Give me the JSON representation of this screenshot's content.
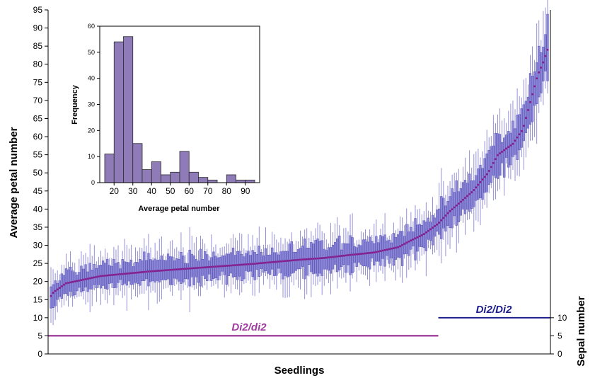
{
  "chart_data": [
    {
      "type": "box",
      "xlabel": "Seedlings",
      "ylabel": "Average petal number",
      "ylim": [
        0,
        95
      ],
      "yticks": [
        0,
        5,
        10,
        15,
        20,
        25,
        30,
        35,
        40,
        45,
        50,
        55,
        60,
        65,
        70,
        75,
        80,
        85,
        90,
        95
      ],
      "secondary_axis": {
        "label": "Sepal number",
        "ylim": [
          0,
          95
        ],
        "ticks": [
          0,
          5,
          10
        ]
      },
      "series": [
        {
          "id": "seedling_means",
          "n_points": 230,
          "mean_profile": {
            "x_fraction": [
              0,
              0.005,
              0.03,
              0.1,
              0.2,
              0.3,
              0.4,
              0.5,
              0.55,
              0.6,
              0.65,
              0.7,
              0.72,
              0.75,
              0.78,
              0.8,
              0.85,
              0.88,
              0.9,
              0.93,
              0.95,
              0.96,
              0.97,
              0.98,
              0.99,
              1.0
            ],
            "y": [
              16,
              17,
              19.5,
              21.5,
              22.8,
              23.8,
              24.8,
              26,
              26.5,
              27.3,
              28,
              29.5,
              31,
              33,
              36,
              39,
              45,
              50,
              55,
              58,
              62,
              67,
              72,
              77,
              80,
              84
            ]
          },
          "box_whisker_spread": "per-seedling range shown as box and whisker"
        }
      ],
      "genotype_levels": [
        {
          "label": "Di2/di2",
          "sepal_number": 5,
          "x_fraction_start": 0.0,
          "x_fraction_end": 0.78,
          "color": "#8b1a8b",
          "label_color": "#a03aa0"
        },
        {
          "label": "Di2/Di2",
          "sepal_number": 10,
          "x_fraction_start": 0.78,
          "x_fraction_end": 1.0,
          "color": "#1c1c8c",
          "label_color": "#1c1c8c"
        }
      ],
      "colors": {
        "box": "#8a85d6",
        "box_stroke": "#3e3aa0",
        "mean": "#8b1a8b"
      }
    },
    {
      "type": "bar",
      "title": "",
      "xlabel": "Average petal number",
      "ylabel": "Frequency",
      "ylim": [
        0,
        60
      ],
      "yticks": [
        0,
        10,
        20,
        30,
        40,
        50,
        60
      ],
      "xlim": [
        15,
        95
      ],
      "xticks": [
        20,
        30,
        40,
        50,
        60,
        70,
        80,
        90
      ],
      "bin_width": 5,
      "bins": [
        {
          "start": 15,
          "end": 20,
          "count": 11
        },
        {
          "start": 20,
          "end": 25,
          "count": 54
        },
        {
          "start": 25,
          "end": 30,
          "count": 56
        },
        {
          "start": 30,
          "end": 35,
          "count": 15
        },
        {
          "start": 35,
          "end": 40,
          "count": 5
        },
        {
          "start": 40,
          "end": 45,
          "count": 8
        },
        {
          "start": 45,
          "end": 50,
          "count": 3
        },
        {
          "start": 50,
          "end": 55,
          "count": 4
        },
        {
          "start": 55,
          "end": 60,
          "count": 12
        },
        {
          "start": 60,
          "end": 65,
          "count": 4
        },
        {
          "start": 65,
          "end": 70,
          "count": 2
        },
        {
          "start": 70,
          "end": 75,
          "count": 1
        },
        {
          "start": 75,
          "end": 80,
          "count": 0
        },
        {
          "start": 80,
          "end": 85,
          "count": 3
        },
        {
          "start": 85,
          "end": 90,
          "count": 1
        },
        {
          "start": 90,
          "end": 95,
          "count": 1
        }
      ],
      "colors": {
        "bar": "#8f7bb8",
        "bar_stroke": "#2b2b2b"
      }
    }
  ]
}
